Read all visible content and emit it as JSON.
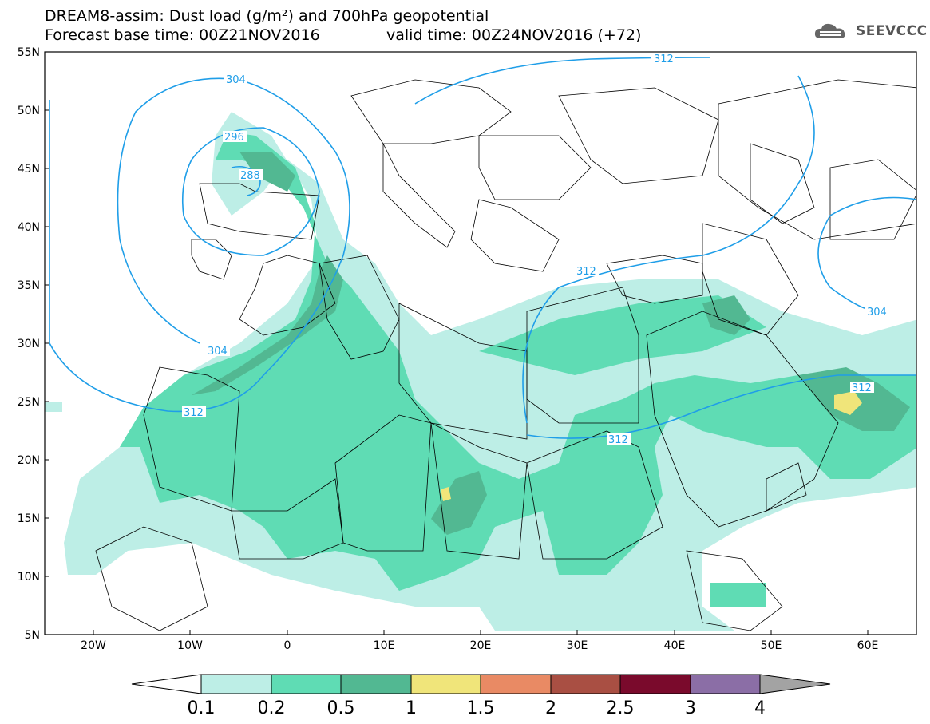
{
  "header": {
    "title_line1": "DREAM8-assim: Dust load (g/m²) and 700hPa geopotential",
    "title_line2": "Forecast base time: 00Z21NOV2016",
    "valid_time": "valid time: 00Z24NOV2016 (+72)",
    "logo_text": "SEEVCCC"
  },
  "map": {
    "lat_labels": [
      "55N",
      "50N",
      "45N",
      "40N",
      "35N",
      "30N",
      "25N",
      "20N",
      "15N",
      "10N",
      "5N"
    ],
    "lon_labels": [
      "20W",
      "10W",
      "0",
      "10E",
      "20E",
      "30E",
      "40E",
      "50E",
      "60E"
    ],
    "contour_labels": [
      "312",
      "304",
      "296",
      "288",
      "312",
      "304",
      "312",
      "312",
      "312",
      "304"
    ],
    "colors": {
      "dust_0_1": "#bdeee6",
      "dust_0_2": "#5fdcb4",
      "dust_0_5": "#52b892",
      "dust_1": "#f0e57a",
      "contour": "#1f9ee8"
    }
  },
  "colorbar": {
    "tick_labels": [
      "0.1",
      "0.2",
      "0.5",
      "1",
      "1.5",
      "2",
      "2.5",
      "3",
      "4"
    ],
    "colors": [
      "#bdeee6",
      "#5fdcb4",
      "#52b892",
      "#f0e57a",
      "#e98a64",
      "#a94f43",
      "#7a0a2c",
      "#8b6ea6",
      "#a3a3a3"
    ]
  }
}
